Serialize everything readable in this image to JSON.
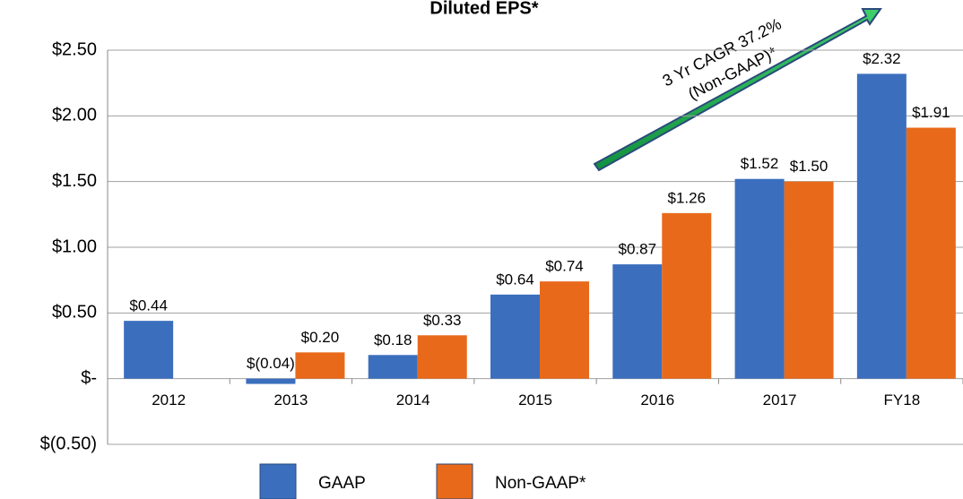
{
  "chart_data": {
    "type": "bar",
    "title": "Diluted EPS*",
    "categories": [
      "2012",
      "2013",
      "2014",
      "2015",
      "2016",
      "2017",
      "FY18"
    ],
    "series": [
      {
        "name": "GAAP",
        "color": "#3b6fbd",
        "values": [
          0.44,
          -0.04,
          0.18,
          0.64,
          0.87,
          1.52,
          2.32
        ],
        "value_labels": [
          "$0.44",
          "$(0.04)",
          "$0.18",
          "$0.64",
          "$0.87",
          "$1.52",
          "$2.32"
        ]
      },
      {
        "name": "Non-GAAP*",
        "color": "#e8691a",
        "values": [
          null,
          0.2,
          0.33,
          0.74,
          1.26,
          1.5,
          1.91
        ],
        "value_labels": [
          null,
          "$0.20",
          "$0.33",
          "$0.74",
          "$1.26",
          "$1.50",
          "$1.91"
        ]
      }
    ],
    "ylim": [
      -0.5,
      2.5
    ],
    "yticks": [
      {
        "value": -0.5,
        "label": "$(0.50)"
      },
      {
        "value": 0,
        "label": "$-"
      },
      {
        "value": 0.5,
        "label": "$0.50"
      },
      {
        "value": 1,
        "label": "$1.00"
      },
      {
        "value": 1.5,
        "label": "$1.50"
      },
      {
        "value": 2,
        "label": "$2.00"
      },
      {
        "value": 2.5,
        "label": "$2.50"
      }
    ],
    "grid": true,
    "annotations": [
      "3 Yr CAGR 37.2%",
      "(Non-GAAP)*"
    ]
  }
}
